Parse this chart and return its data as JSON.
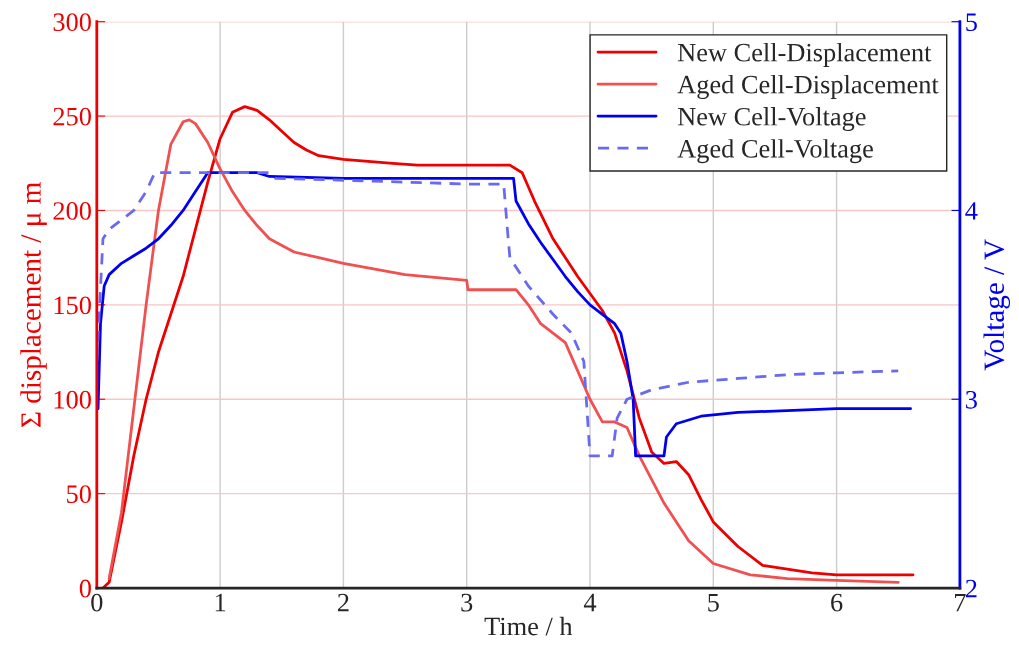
{
  "chart_data": {
    "type": "line",
    "xlabel": "Time / h",
    "ylabel": "Σ displacement / μ m",
    "y2label": "Voltage / V",
    "xlim": [
      0,
      7
    ],
    "xticks": [
      0,
      1,
      2,
      3,
      4,
      5,
      6,
      7
    ],
    "ylim": [
      0,
      300
    ],
    "yticks": [
      0,
      50,
      100,
      150,
      200,
      250,
      300
    ],
    "y2lim": [
      2,
      5
    ],
    "y2ticks": [
      2,
      3,
      4,
      5
    ],
    "grid": true,
    "legend": "top right",
    "series": [
      {
        "name": "New Cell-Displacement",
        "color": "#ee0000",
        "line_style": "solid",
        "x": [
          0.05,
          0.1,
          0.2,
          0.3,
          0.4,
          0.5,
          0.6,
          0.7,
          0.8,
          0.9,
          1.0,
          1.1,
          1.2,
          1.3,
          1.4,
          1.5,
          1.6,
          1.7,
          1.8,
          2.0,
          2.2,
          2.4,
          2.6,
          2.8,
          3.0,
          3.2,
          3.35,
          3.45,
          3.55,
          3.7,
          3.9,
          4.0,
          4.1,
          4.2,
          4.3,
          4.4,
          4.5,
          4.6,
          4.7,
          4.8,
          4.9,
          5.0,
          5.2,
          5.4,
          5.6,
          5.8,
          6.0,
          6.2,
          6.4,
          6.62
        ],
        "values": [
          0,
          3,
          35,
          70,
          100,
          125,
          145,
          165,
          190,
          215,
          238,
          252,
          255,
          253,
          248,
          242,
          236,
          232,
          229,
          227,
          226,
          225,
          224,
          224,
          224,
          224,
          224,
          220,
          205,
          185,
          165,
          156,
          147,
          135,
          115,
          90,
          72,
          66,
          67,
          60,
          47,
          35,
          22,
          12,
          10,
          8,
          7,
          7,
          7,
          7
        ]
      },
      {
        "name": "Aged Cell-Displacement",
        "color": "#f05050",
        "line_style": "solid",
        "x": [
          0.1,
          0.2,
          0.3,
          0.4,
          0.5,
          0.6,
          0.7,
          0.75,
          0.8,
          0.9,
          1.0,
          1.1,
          1.2,
          1.3,
          1.4,
          1.6,
          1.8,
          2.0,
          2.5,
          3.0,
          3.01,
          3.4,
          3.5,
          3.6,
          3.7,
          3.8,
          3.9,
          4.0,
          4.1,
          4.2,
          4.3,
          4.4,
          4.6,
          4.8,
          5.0,
          5.3,
          5.6,
          6.0,
          6.5
        ],
        "values": [
          5,
          40,
          95,
          150,
          200,
          235,
          247,
          248,
          246,
          236,
          222,
          210,
          200,
          192,
          185,
          178,
          175,
          172,
          166,
          163,
          158,
          158,
          150,
          140,
          135,
          130,
          115,
          100,
          88,
          88,
          85,
          70,
          45,
          25,
          13,
          7,
          5,
          4,
          3
        ]
      },
      {
        "name": "New Cell-Voltage",
        "color": "#0000ee",
        "line_style": "solid",
        "axis": "y2",
        "x": [
          0.01,
          0.03,
          0.06,
          0.1,
          0.2,
          0.3,
          0.4,
          0.5,
          0.6,
          0.7,
          0.8,
          0.9,
          0.95,
          1.3,
          1.4,
          2.0,
          3.0,
          3.38,
          3.4,
          3.5,
          3.6,
          3.7,
          3.8,
          3.9,
          4.0,
          4.1,
          4.2,
          4.25,
          4.3,
          4.35,
          4.37,
          4.6,
          4.62,
          4.7,
          4.9,
          5.2,
          5.6,
          6.0,
          6.6
        ],
        "values": [
          2.95,
          3.4,
          3.6,
          3.66,
          3.72,
          3.76,
          3.8,
          3.85,
          3.92,
          4.0,
          4.1,
          4.2,
          4.2,
          4.2,
          4.18,
          4.17,
          4.17,
          4.17,
          4.05,
          3.93,
          3.83,
          3.74,
          3.65,
          3.57,
          3.5,
          3.45,
          3.4,
          3.35,
          3.2,
          3.0,
          2.7,
          2.7,
          2.8,
          2.87,
          2.91,
          2.93,
          2.94,
          2.95,
          2.95
        ]
      },
      {
        "name": "Aged Cell-Voltage",
        "color": "#6a6af0",
        "line_style": "dashed",
        "axis": "y2",
        "x": [
          0.0,
          0.05,
          0.1,
          0.2,
          0.3,
          0.4,
          0.47,
          1.4,
          1.45,
          2.0,
          3.0,
          3.3,
          3.33,
          3.35,
          3.5,
          3.7,
          3.85,
          3.95,
          4.0,
          4.18,
          4.22,
          4.3,
          4.5,
          4.8,
          5.2,
          5.6,
          6.0,
          6.5
        ],
        "values": [
          3.2,
          3.85,
          3.9,
          3.95,
          4.0,
          4.1,
          4.2,
          4.2,
          4.17,
          4.16,
          4.14,
          4.14,
          3.9,
          3.75,
          3.6,
          3.45,
          3.35,
          3.2,
          2.7,
          2.7,
          2.9,
          3.0,
          3.05,
          3.09,
          3.11,
          3.13,
          3.14,
          3.15
        ]
      }
    ]
  }
}
